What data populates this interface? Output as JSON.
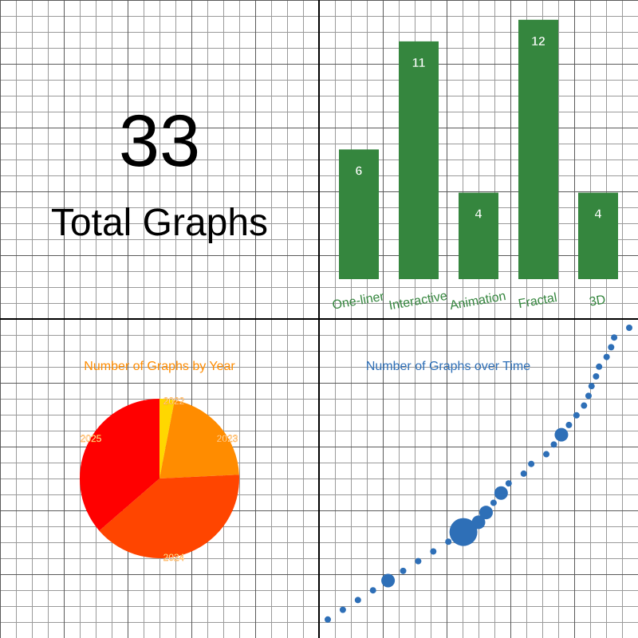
{
  "summary": {
    "total": "33",
    "label": "Total Graphs"
  },
  "chart_data": [
    {
      "type": "bar",
      "categories": [
        "One-liner",
        "Interactive",
        "Animation",
        "Fractal",
        "3D"
      ],
      "values": [
        6,
        11,
        4,
        12,
        4
      ],
      "ylim": [
        0,
        13
      ],
      "bar_color": "#35863e",
      "label_color": "#35863e",
      "value_label_color": "#ffffff",
      "grid": true
    },
    {
      "type": "pie",
      "title": "Number of Graphs by Year",
      "title_color": "#ff8c00",
      "labels": [
        "2022",
        "2023",
        "2024",
        "2025"
      ],
      "values": [
        1,
        7,
        13,
        12
      ],
      "colors": [
        "#ffd700",
        "#ff8c00",
        "#ff4500",
        "#ff0000"
      ],
      "label_color": "#ffffff"
    },
    {
      "type": "scatter",
      "title": "Number of Graphs over Time",
      "title_color": "#2e6fb7",
      "point_color": "#2e6fb7",
      "points": [
        {
          "x": 0,
          "y": 1,
          "size": 1
        },
        {
          "x": 1,
          "y": 2,
          "size": 1
        },
        {
          "x": 2,
          "y": 3,
          "size": 1
        },
        {
          "x": 3,
          "y": 4,
          "size": 1
        },
        {
          "x": 4,
          "y": 5,
          "size": 2
        },
        {
          "x": 5,
          "y": 6,
          "size": 1
        },
        {
          "x": 6,
          "y": 7,
          "size": 1
        },
        {
          "x": 7,
          "y": 8,
          "size": 1
        },
        {
          "x": 8,
          "y": 9,
          "size": 1
        },
        {
          "x": 9,
          "y": 10,
          "size": 4
        },
        {
          "x": 10,
          "y": 11,
          "size": 2
        },
        {
          "x": 10.5,
          "y": 12,
          "size": 2
        },
        {
          "x": 11,
          "y": 13,
          "size": 1
        },
        {
          "x": 11.5,
          "y": 14,
          "size": 2
        },
        {
          "x": 12,
          "y": 15,
          "size": 1
        },
        {
          "x": 13,
          "y": 16,
          "size": 1
        },
        {
          "x": 13.5,
          "y": 17,
          "size": 1
        },
        {
          "x": 14.5,
          "y": 18,
          "size": 1
        },
        {
          "x": 15,
          "y": 19,
          "size": 1
        },
        {
          "x": 15.5,
          "y": 20,
          "size": 2
        },
        {
          "x": 16,
          "y": 21,
          "size": 1
        },
        {
          "x": 16.5,
          "y": 22,
          "size": 1
        },
        {
          "x": 17,
          "y": 23,
          "size": 1
        },
        {
          "x": 17.3,
          "y": 24,
          "size": 1
        },
        {
          "x": 17.5,
          "y": 25,
          "size": 1
        },
        {
          "x": 17.8,
          "y": 26,
          "size": 1
        },
        {
          "x": 18,
          "y": 27,
          "size": 1
        },
        {
          "x": 18.5,
          "y": 28,
          "size": 1
        },
        {
          "x": 18.8,
          "y": 29,
          "size": 1
        },
        {
          "x": 19,
          "y": 30,
          "size": 1
        },
        {
          "x": 20,
          "y": 31,
          "size": 1
        }
      ],
      "xlim": [
        0,
        20
      ],
      "ylim": [
        0,
        31
      ]
    }
  ]
}
